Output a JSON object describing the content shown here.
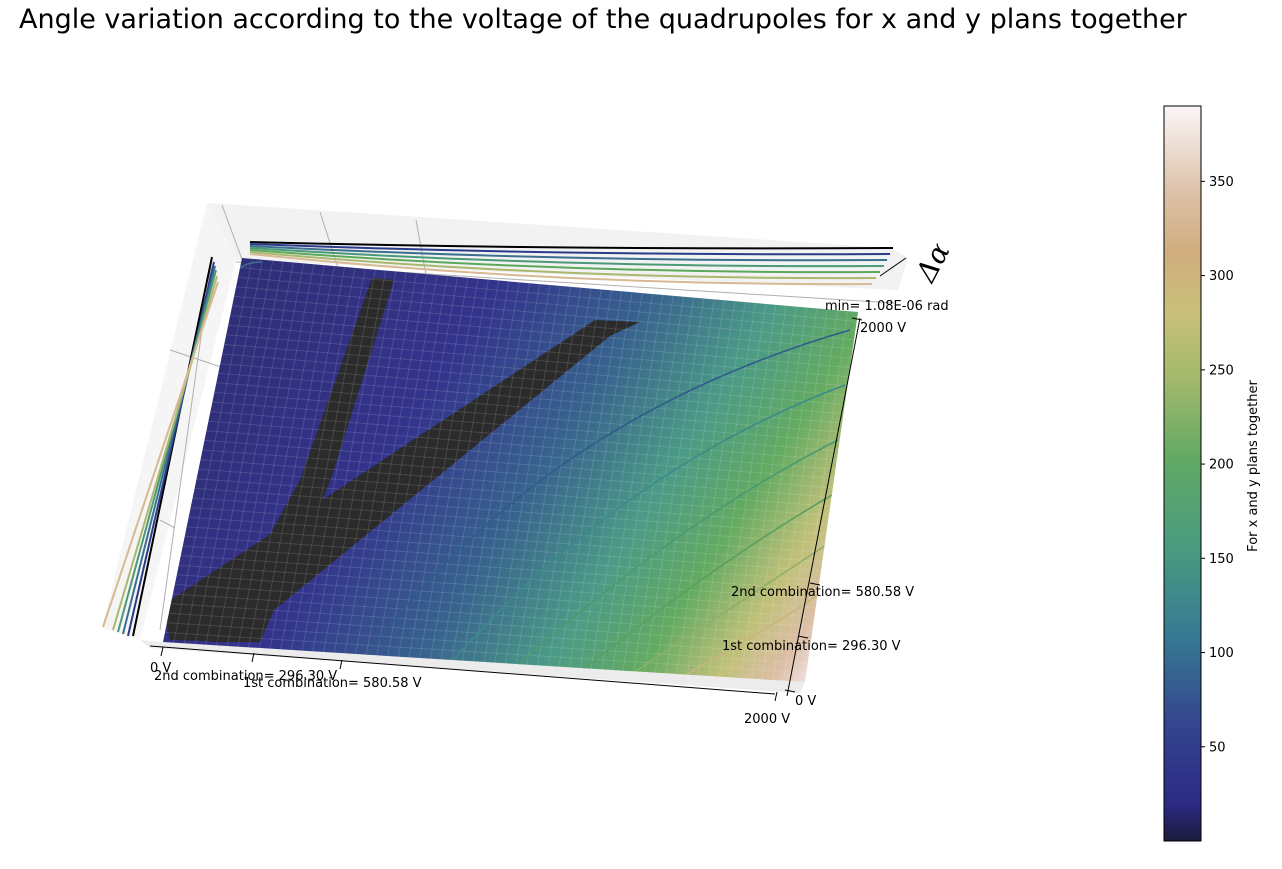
{
  "chart_data": {
    "type": "surface",
    "title": "Angle variation according to the voltage of the quadrupoles for x and y plans together",
    "zlabel": "Δα",
    "colorbar": {
      "label": "For x and y plans together",
      "ticks": [
        50,
        100,
        150,
        200,
        250,
        300,
        350
      ],
      "range": [
        0,
        390
      ],
      "colormap": "gist_earth"
    },
    "axes": {
      "x": {
        "range": [
          0,
          2000
        ],
        "unit": "V",
        "tick_labels": [
          "0 V",
          "2nd combination= 296.30 V",
          "1st combination= 580.58 V",
          "2000 V"
        ]
      },
      "y": {
        "range": [
          0,
          2000
        ],
        "unit": "V",
        "tick_labels": [
          "0 V",
          "1st combination= 296.30 V",
          "2nd combination= 580.58 V",
          "2000 V"
        ]
      }
    },
    "annotations": [
      "min= 1.08E-06 rad"
    ],
    "minimum_marks": {
      "first_combination": {
        "x": 580.58,
        "y": 296.3
      },
      "second_combination": {
        "x": 296.3,
        "y": 580.58
      }
    }
  }
}
